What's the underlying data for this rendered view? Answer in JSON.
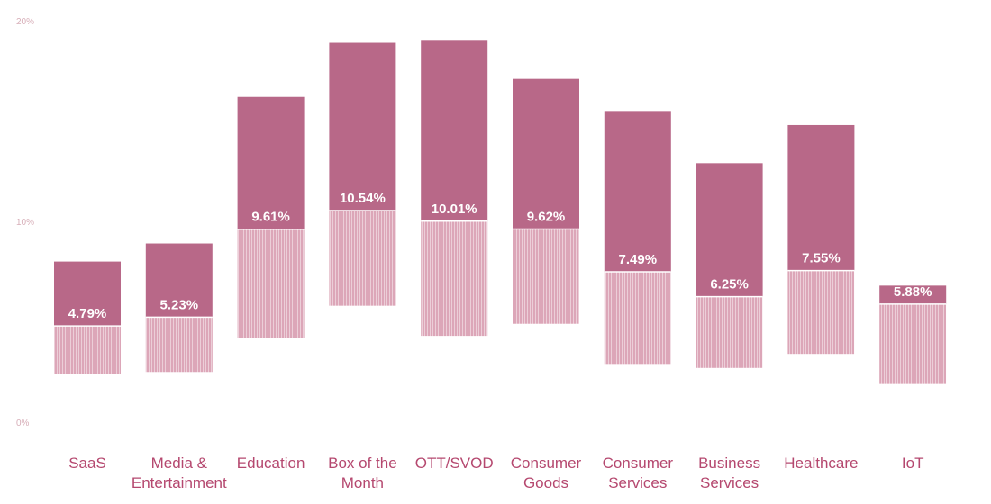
{
  "chart_data": {
    "type": "bar",
    "title": "",
    "xlabel": "",
    "ylabel": "",
    "ylim": [
      0,
      20
    ],
    "yticks": [
      "0%",
      "10%",
      "20%"
    ],
    "grid": false,
    "categories": [
      [
        "SaaS"
      ],
      [
        "Media &",
        "Entertainment"
      ],
      [
        "Education"
      ],
      [
        "Box of the",
        "Month"
      ],
      [
        "OTT/SVOD"
      ],
      [
        "Consumer",
        "Goods"
      ],
      [
        "Consumer",
        "Services"
      ],
      [
        "Business",
        "Services"
      ],
      [
        "Healthcare"
      ],
      [
        "IoT"
      ]
    ],
    "series": [
      {
        "values": [
          4.79,
          5.23,
          9.61,
          10.54,
          10.01,
          9.62,
          7.49,
          6.25,
          7.55,
          5.88
        ],
        "labels": [
          "4.79%",
          "5.23%",
          "9.61%",
          "10.54%",
          "10.01%",
          "9.62%",
          "7.49%",
          "6.25%",
          "7.55%",
          "5.88%"
        ],
        "range_low": [
          2.4,
          2.5,
          4.2,
          5.8,
          4.3,
          4.9,
          2.9,
          2.7,
          3.4,
          1.9
        ],
        "range_high": [
          8.0,
          8.9,
          16.2,
          18.9,
          19.0,
          17.1,
          15.5,
          12.9,
          14.8,
          6.8
        ]
      }
    ],
    "colors": {
      "bar": "#b86888",
      "lower_band": "#dca6b8",
      "tick_text": "#d7aeb8",
      "category_text": "#b5486f",
      "value_text": "#ffffff"
    }
  }
}
